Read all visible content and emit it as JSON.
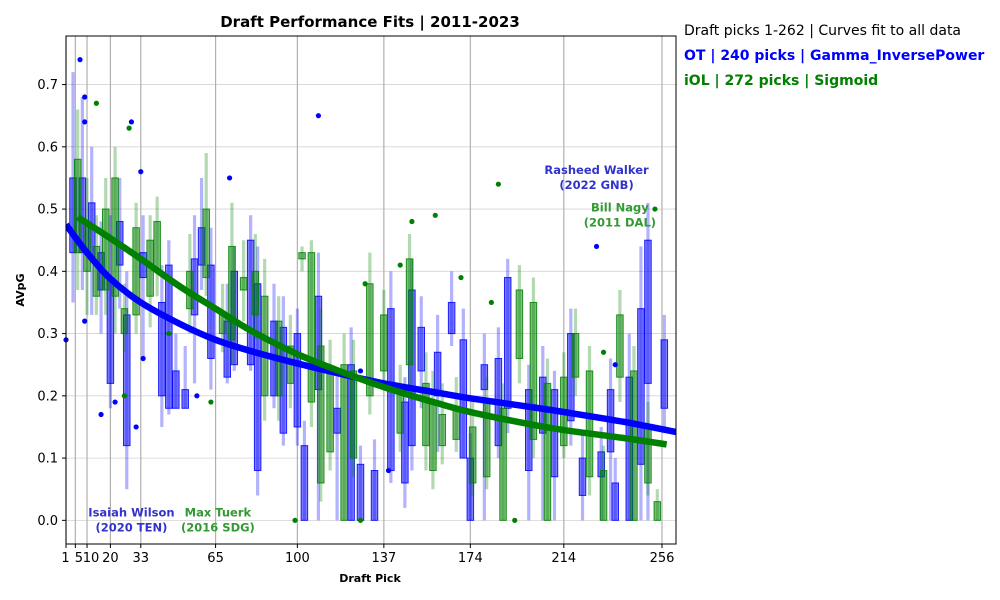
{
  "chart_data": {
    "type": "box",
    "title": "Draft Performance Fits | 2011-2023",
    "xlabel": "Draft Pick",
    "ylabel": "AVpG",
    "xlim": [
      1,
      262
    ],
    "ylim": [
      -0.038,
      0.778
    ],
    "x_ticks": [
      1,
      5,
      10,
      20,
      33,
      65,
      100,
      137,
      174,
      214,
      256
    ],
    "x_tick_labels": [
      "1",
      "5",
      "10",
      "20",
      "33",
      "65",
      "100",
      "137",
      "174",
      "214",
      "256"
    ],
    "y_ticks": [
      0.0,
      0.1,
      0.2,
      0.3,
      0.4,
      0.5,
      0.6,
      0.7
    ],
    "y_tick_labels": [
      "0.0",
      "0.1",
      "0.2",
      "0.3",
      "0.4",
      "0.5",
      "0.6",
      "0.7"
    ],
    "grid": true,
    "info_lines": [
      "Draft picks 1-262 | Curves fit to all data",
      "OT | 240 picks | Gamma_InversePower",
      "iOL | 272 picks | Sigmoid"
    ],
    "colors": {
      "OT": "#0000ff",
      "iOL": "#008000",
      "OT_label": "#3333cc",
      "iOL_label": "#339933",
      "grid": "#d3d3d3",
      "round_line": "#b0b0b0"
    },
    "series": [
      {
        "name": "OT",
        "fit_curve": {
          "x": [
            1,
            10,
            20,
            33,
            50,
            65,
            80,
            100,
            120,
            137,
            160,
            174,
            200,
            214,
            240,
            262
          ],
          "y": [
            0.475,
            0.43,
            0.388,
            0.35,
            0.315,
            0.29,
            0.272,
            0.252,
            0.234,
            0.22,
            0.205,
            0.196,
            0.182,
            0.174,
            0.158,
            0.142
          ]
        },
        "boxes": [
          {
            "x": 4,
            "low": 0.35,
            "q1": 0.43,
            "q3": 0.55,
            "high": 0.72
          },
          {
            "x": 8,
            "low": 0.37,
            "q1": 0.43,
            "q3": 0.55,
            "high": 0.68
          },
          {
            "x": 12,
            "low": 0.33,
            "q1": 0.42,
            "q3": 0.51,
            "high": 0.6
          },
          {
            "x": 16,
            "low": 0.3,
            "q1": 0.37,
            "q3": 0.43,
            "high": 0.48
          },
          {
            "x": 20,
            "low": 0.18,
            "q1": 0.22,
            "q3": 0.39,
            "high": 0.49
          },
          {
            "x": 24,
            "low": 0.34,
            "q1": 0.41,
            "q3": 0.48,
            "high": 0.55
          },
          {
            "x": 27,
            "low": 0.05,
            "q1": 0.12,
            "q3": 0.33,
            "high": 0.4
          },
          {
            "x": 34,
            "low": 0.26,
            "q1": 0.39,
            "q3": 0.43,
            "high": 0.49
          },
          {
            "x": 42,
            "low": 0.15,
            "q1": 0.2,
            "q3": 0.35,
            "high": 0.41
          },
          {
            "x": 45,
            "low": 0.17,
            "q1": 0.18,
            "q3": 0.41,
            "high": 0.45
          },
          {
            "x": 48,
            "low": 0.18,
            "q1": 0.18,
            "q3": 0.24,
            "high": 0.3
          },
          {
            "x": 52,
            "low": 0.18,
            "q1": 0.18,
            "q3": 0.21,
            "high": 0.28
          },
          {
            "x": 56,
            "low": 0.22,
            "q1": 0.33,
            "q3": 0.42,
            "high": 0.49
          },
          {
            "x": 59,
            "low": 0.37,
            "q1": 0.41,
            "q3": 0.47,
            "high": 0.55
          },
          {
            "x": 63,
            "low": 0.21,
            "q1": 0.26,
            "q3": 0.41,
            "high": 0.47
          },
          {
            "x": 70,
            "low": 0.22,
            "q1": 0.23,
            "q3": 0.32,
            "high": 0.38
          },
          {
            "x": 73,
            "low": 0.24,
            "q1": 0.25,
            "q3": 0.4,
            "high": 0.44
          },
          {
            "x": 80,
            "low": 0.24,
            "q1": 0.25,
            "q3": 0.45,
            "high": 0.49
          },
          {
            "x": 83,
            "low": 0.04,
            "q1": 0.08,
            "q3": 0.38,
            "high": 0.44
          },
          {
            "x": 90,
            "low": 0.18,
            "q1": 0.2,
            "q3": 0.32,
            "high": 0.38
          },
          {
            "x": 94,
            "low": 0.12,
            "q1": 0.14,
            "q3": 0.31,
            "high": 0.36
          },
          {
            "x": 100,
            "low": 0.12,
            "q1": 0.15,
            "q3": 0.3,
            "high": 0.34
          },
          {
            "x": 103,
            "low": 0.0,
            "q1": 0.0,
            "q3": 0.12,
            "high": 0.16
          },
          {
            "x": 109,
            "low": 0.0,
            "q1": 0.21,
            "q3": 0.36,
            "high": 0.43
          },
          {
            "x": 117,
            "low": 0.0,
            "q1": 0.14,
            "q3": 0.18,
            "high": 0.24
          },
          {
            "x": 123,
            "low": 0.0,
            "q1": 0.0,
            "q3": 0.25,
            "high": 0.31
          },
          {
            "x": 127,
            "low": 0.0,
            "q1": 0.0,
            "q3": 0.09,
            "high": 0.12
          },
          {
            "x": 133,
            "low": 0.0,
            "q1": 0.0,
            "q3": 0.08,
            "high": 0.13
          },
          {
            "x": 140,
            "low": 0.06,
            "q1": 0.08,
            "q3": 0.34,
            "high": 0.4
          },
          {
            "x": 146,
            "low": 0.02,
            "q1": 0.06,
            "q3": 0.19,
            "high": 0.23
          },
          {
            "x": 149,
            "low": 0.08,
            "q1": 0.12,
            "q3": 0.37,
            "high": 0.42
          },
          {
            "x": 153,
            "low": 0.18,
            "q1": 0.24,
            "q3": 0.31,
            "high": 0.36
          },
          {
            "x": 160,
            "low": 0.11,
            "q1": 0.2,
            "q3": 0.27,
            "high": 0.33
          },
          {
            "x": 166,
            "low": 0.28,
            "q1": 0.3,
            "q3": 0.35,
            "high": 0.4
          },
          {
            "x": 171,
            "low": 0.1,
            "q1": 0.1,
            "q3": 0.29,
            "high": 0.34
          },
          {
            "x": 174,
            "low": 0.0,
            "q1": 0.0,
            "q3": 0.1,
            "high": 0.14
          },
          {
            "x": 180,
            "low": 0.0,
            "q1": 0.21,
            "q3": 0.25,
            "high": 0.3
          },
          {
            "x": 186,
            "low": 0.1,
            "q1": 0.12,
            "q3": 0.26,
            "high": 0.31
          },
          {
            "x": 190,
            "low": 0.14,
            "q1": 0.18,
            "q3": 0.39,
            "high": 0.42
          },
          {
            "x": 199,
            "low": 0.0,
            "q1": 0.08,
            "q3": 0.21,
            "high": 0.25
          },
          {
            "x": 205,
            "low": 0.0,
            "q1": 0.14,
            "q3": 0.23,
            "high": 0.28
          },
          {
            "x": 210,
            "low": 0.0,
            "q1": 0.07,
            "q3": 0.21,
            "high": 0.24
          },
          {
            "x": 217,
            "low": 0.12,
            "q1": 0.16,
            "q3": 0.3,
            "high": 0.34
          },
          {
            "x": 222,
            "low": 0.0,
            "q1": 0.04,
            "q3": 0.1,
            "high": 0.14
          },
          {
            "x": 230,
            "low": 0.0,
            "q1": 0.07,
            "q3": 0.11,
            "high": 0.15
          },
          {
            "x": 234,
            "low": 0.0,
            "q1": 0.11,
            "q3": 0.21,
            "high": 0.26
          },
          {
            "x": 236,
            "low": 0.0,
            "q1": 0.0,
            "q3": 0.06,
            "high": 0.1
          },
          {
            "x": 242,
            "low": 0.0,
            "q1": 0.0,
            "q3": 0.23,
            "high": 0.3
          },
          {
            "x": 247,
            "low": 0.0,
            "q1": 0.09,
            "q3": 0.34,
            "high": 0.44
          },
          {
            "x": 250,
            "low": 0.0,
            "q1": 0.22,
            "q3": 0.45,
            "high": 0.51
          },
          {
            "x": 257,
            "low": 0.14,
            "q1": 0.18,
            "q3": 0.29,
            "high": 0.33
          }
        ],
        "points": [
          {
            "x": 1,
            "y": 0.29
          },
          {
            "x": 7,
            "y": 0.74
          },
          {
            "x": 9,
            "y": 0.68
          },
          {
            "x": 9,
            "y": 0.64
          },
          {
            "x": 9,
            "y": 0.32
          },
          {
            "x": 16,
            "y": 0.17
          },
          {
            "x": 22,
            "y": 0.19
          },
          {
            "x": 29,
            "y": 0.64
          },
          {
            "x": 31,
            "y": 0.15
          },
          {
            "x": 33,
            "y": 0.56
          },
          {
            "x": 34,
            "y": 0.26
          },
          {
            "x": 57,
            "y": 0.2
          },
          {
            "x": 71,
            "y": 0.55
          },
          {
            "x": 109,
            "y": 0.65
          },
          {
            "x": 127,
            "y": 0.24
          },
          {
            "x": 139,
            "y": 0.08
          },
          {
            "x": 228,
            "y": 0.44
          },
          {
            "x": 236,
            "y": 0.25
          }
        ]
      },
      {
        "name": "iOL",
        "fit_curve": {
          "x": [
            6,
            20,
            33,
            50,
            65,
            80,
            100,
            120,
            137,
            160,
            174,
            200,
            214,
            240,
            258
          ],
          "y": [
            0.487,
            0.453,
            0.42,
            0.375,
            0.34,
            0.305,
            0.267,
            0.237,
            0.214,
            0.188,
            0.174,
            0.154,
            0.145,
            0.132,
            0.122
          ]
        },
        "boxes": [
          {
            "x": 6,
            "low": 0.37,
            "q1": 0.43,
            "q3": 0.58,
            "high": 0.66
          },
          {
            "x": 10,
            "low": 0.33,
            "q1": 0.4,
            "q3": 0.48,
            "high": 0.55
          },
          {
            "x": 14,
            "low": 0.33,
            "q1": 0.36,
            "q3": 0.44,
            "high": 0.49
          },
          {
            "x": 18,
            "low": 0.33,
            "q1": 0.37,
            "q3": 0.5,
            "high": 0.55
          },
          {
            "x": 22,
            "low": 0.3,
            "q1": 0.36,
            "q3": 0.55,
            "high": 0.6
          },
          {
            "x": 26,
            "low": 0.27,
            "q1": 0.3,
            "q3": 0.34,
            "high": 0.38
          },
          {
            "x": 31,
            "low": 0.3,
            "q1": 0.33,
            "q3": 0.47,
            "high": 0.51
          },
          {
            "x": 37,
            "low": 0.31,
            "q1": 0.36,
            "q3": 0.45,
            "high": 0.49
          },
          {
            "x": 40,
            "low": 0.36,
            "q1": 0.4,
            "q3": 0.48,
            "high": 0.52
          },
          {
            "x": 54,
            "low": 0.3,
            "q1": 0.34,
            "q3": 0.4,
            "high": 0.46
          },
          {
            "x": 61,
            "low": 0.36,
            "q1": 0.39,
            "q3": 0.5,
            "high": 0.59
          },
          {
            "x": 68,
            "low": 0.27,
            "q1": 0.3,
            "q3": 0.33,
            "high": 0.38
          },
          {
            "x": 72,
            "low": 0.25,
            "q1": 0.29,
            "q3": 0.44,
            "high": 0.51
          },
          {
            "x": 77,
            "low": 0.32,
            "q1": 0.37,
            "q3": 0.39,
            "high": 0.45
          },
          {
            "x": 82,
            "low": 0.29,
            "q1": 0.33,
            "q3": 0.4,
            "high": 0.46
          },
          {
            "x": 86,
            "low": 0.16,
            "q1": 0.2,
            "q3": 0.36,
            "high": 0.42
          },
          {
            "x": 92,
            "low": 0.16,
            "q1": 0.2,
            "q3": 0.32,
            "high": 0.36
          },
          {
            "x": 97,
            "low": 0.18,
            "q1": 0.22,
            "q3": 0.28,
            "high": 0.33
          },
          {
            "x": 102,
            "low": 0.4,
            "q1": 0.42,
            "q3": 0.43,
            "high": 0.44
          },
          {
            "x": 106,
            "low": 0.15,
            "q1": 0.19,
            "q3": 0.43,
            "high": 0.45
          },
          {
            "x": 110,
            "low": 0.03,
            "q1": 0.06,
            "q3": 0.28,
            "high": 0.34
          },
          {
            "x": 114,
            "low": 0.08,
            "q1": 0.11,
            "q3": 0.24,
            "high": 0.29
          },
          {
            "x": 120,
            "low": 0.0,
            "q1": 0.0,
            "q3": 0.25,
            "high": 0.3
          },
          {
            "x": 124,
            "low": 0.07,
            "q1": 0.1,
            "q3": 0.24,
            "high": 0.29
          },
          {
            "x": 131,
            "low": 0.17,
            "q1": 0.2,
            "q3": 0.38,
            "high": 0.43
          },
          {
            "x": 137,
            "low": 0.21,
            "q1": 0.24,
            "q3": 0.33,
            "high": 0.37
          },
          {
            "x": 144,
            "low": 0.11,
            "q1": 0.14,
            "q3": 0.21,
            "high": 0.25
          },
          {
            "x": 148,
            "low": 0.21,
            "q1": 0.25,
            "q3": 0.42,
            "high": 0.46
          },
          {
            "x": 155,
            "low": 0.08,
            "q1": 0.12,
            "q3": 0.22,
            "high": 0.27
          },
          {
            "x": 158,
            "low": 0.05,
            "q1": 0.08,
            "q3": 0.19,
            "high": 0.24
          },
          {
            "x": 162,
            "low": 0.09,
            "q1": 0.12,
            "q3": 0.17,
            "high": 0.22
          },
          {
            "x": 168,
            "low": 0.11,
            "q1": 0.13,
            "q3": 0.18,
            "high": 0.23
          },
          {
            "x": 175,
            "low": 0.04,
            "q1": 0.06,
            "q3": 0.15,
            "high": 0.2
          },
          {
            "x": 181,
            "low": 0.05,
            "q1": 0.07,
            "q3": 0.19,
            "high": 0.23
          },
          {
            "x": 188,
            "low": 0.0,
            "q1": 0.0,
            "q3": 0.18,
            "high": 0.22
          },
          {
            "x": 195,
            "low": 0.22,
            "q1": 0.26,
            "q3": 0.37,
            "high": 0.41
          },
          {
            "x": 201,
            "low": 0.1,
            "q1": 0.13,
            "q3": 0.35,
            "high": 0.39
          },
          {
            "x": 207,
            "low": 0.0,
            "q1": 0.0,
            "q3": 0.22,
            "high": 0.26
          },
          {
            "x": 214,
            "low": 0.1,
            "q1": 0.12,
            "q3": 0.23,
            "high": 0.27
          },
          {
            "x": 219,
            "low": 0.2,
            "q1": 0.23,
            "q3": 0.3,
            "high": 0.34
          },
          {
            "x": 225,
            "low": 0.04,
            "q1": 0.07,
            "q3": 0.24,
            "high": 0.28
          },
          {
            "x": 231,
            "low": 0.0,
            "q1": 0.0,
            "q3": 0.08,
            "high": 0.12
          },
          {
            "x": 238,
            "low": 0.19,
            "q1": 0.23,
            "q3": 0.33,
            "high": 0.37
          },
          {
            "x": 244,
            "low": 0.0,
            "q1": 0.0,
            "q3": 0.24,
            "high": 0.28
          },
          {
            "x": 250,
            "low": 0.04,
            "q1": 0.06,
            "q3": 0.15,
            "high": 0.19
          },
          {
            "x": 254,
            "low": 0.0,
            "q1": 0.0,
            "q3": 0.03,
            "high": 0.05
          }
        ],
        "points": [
          {
            "x": 14,
            "y": 0.67
          },
          {
            "x": 28,
            "y": 0.63
          },
          {
            "x": 26,
            "y": 0.2
          },
          {
            "x": 45,
            "y": 0.3
          },
          {
            "x": 63,
            "y": 0.19
          },
          {
            "x": 99,
            "y": 0.0
          },
          {
            "x": 127,
            "y": 0.0
          },
          {
            "x": 129,
            "y": 0.38
          },
          {
            "x": 144,
            "y": 0.41
          },
          {
            "x": 149,
            "y": 0.48
          },
          {
            "x": 159,
            "y": 0.49
          },
          {
            "x": 170,
            "y": 0.39
          },
          {
            "x": 183,
            "y": 0.35
          },
          {
            "x": 186,
            "y": 0.54
          },
          {
            "x": 193,
            "y": 0.0
          },
          {
            "x": 231,
            "y": 0.27
          },
          {
            "x": 253,
            "y": 0.5
          }
        ]
      }
    ],
    "annotations": [
      {
        "text": [
          "Isaiah Wilson",
          "(2020 TEN)"
        ],
        "series": "OT",
        "x": 29,
        "y": 0.0
      },
      {
        "text": [
          "Max Tuerk",
          "(2016 SDG)"
        ],
        "series": "iOL",
        "x": 66,
        "y": 0.0
      },
      {
        "text": [
          "Rasheed Walker",
          "(2022 GNB)"
        ],
        "series": "OT",
        "x": 228,
        "y": 0.55
      },
      {
        "text": [
          "Bill Nagy",
          "(2011 DAL)"
        ],
        "series": "iOL",
        "x": 238,
        "y": 0.49
      }
    ]
  }
}
